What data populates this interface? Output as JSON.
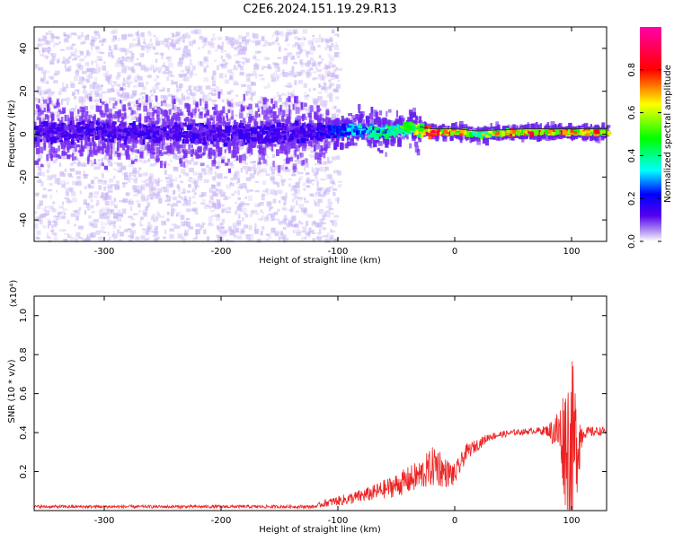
{
  "title": "C2E6.2024.151.19.29.R13",
  "chart_data": [
    {
      "type": "heatmap",
      "title": "",
      "xlabel": "Height of straight line (km)",
      "ylabel": "Frequency (Hz)",
      "xlim": [
        -360,
        130
      ],
      "ylim": [
        -50,
        50
      ],
      "x_ticks": [
        -300,
        -200,
        -100,
        0,
        100
      ],
      "x_tick_labels": [
        "-300",
        "-200",
        "-100",
        "0",
        "100"
      ],
      "y_ticks": [
        -40,
        -20,
        0,
        20,
        40
      ],
      "y_tick_labels": [
        "-40",
        "-20",
        "0",
        "20",
        "40"
      ],
      "colorbar": {
        "label": "Normalized spectral amplitude",
        "range": [
          0,
          1
        ],
        "ticks": [
          0.0,
          0.2,
          0.4,
          0.6,
          0.8
        ],
        "tick_labels": [
          "0.0",
          "0.2",
          "0.4",
          "0.6",
          "0.8"
        ]
      },
      "ridge": {
        "x": [
          -360,
          -300,
          -200,
          -120,
          -90,
          -60,
          -40,
          -20,
          0,
          20,
          60,
          100,
          130
        ],
        "frequency": [
          1,
          1,
          0,
          1,
          2,
          1,
          3,
          1,
          1,
          0,
          1,
          1,
          1
        ],
        "amplitude": [
          0.15,
          0.15,
          0.15,
          0.15,
          0.3,
          0.4,
          0.5,
          0.85,
          0.7,
          0.55,
          0.8,
          0.75,
          0.7
        ]
      },
      "grid": false
    },
    {
      "type": "line",
      "title": "",
      "xlabel": "Height of straight line (km)",
      "ylabel": "SNR (10 * v/v)",
      "y_multiplier": "(x10⁴)",
      "xlim": [
        -360,
        130
      ],
      "ylim": [
        0,
        1.1
      ],
      "x_ticks": [
        -300,
        -200,
        -100,
        0,
        100
      ],
      "x_tick_labels": [
        "-300",
        "-200",
        "-100",
        "0",
        "100"
      ],
      "y_ticks": [
        0.2,
        0.4,
        0.6,
        0.8,
        1.0
      ],
      "y_tick_labels": [
        "0.2",
        "0.4",
        "0.6",
        "0.8",
        "1.0"
      ],
      "series_color": "#ee2222",
      "envelope": {
        "x": [
          -360,
          -120,
          -110,
          -90,
          -70,
          -50,
          -30,
          -20,
          -15,
          -10,
          0,
          10,
          30,
          50,
          70,
          80,
          90,
          95,
          100,
          105,
          110,
          130
        ],
        "mean": [
          0.02,
          0.02,
          0.04,
          0.06,
          0.09,
          0.13,
          0.18,
          0.22,
          0.24,
          0.2,
          0.18,
          0.3,
          0.38,
          0.4,
          0.41,
          0.41,
          0.4,
          0.35,
          0.3,
          0.35,
          0.4,
          0.41
        ],
        "spread": [
          0.008,
          0.008,
          0.02,
          0.03,
          0.04,
          0.06,
          0.08,
          0.1,
          0.12,
          0.08,
          0.06,
          0.04,
          0.02,
          0.015,
          0.015,
          0.03,
          0.15,
          0.35,
          0.5,
          0.25,
          0.03,
          0.02
        ]
      },
      "grid": false
    }
  ]
}
